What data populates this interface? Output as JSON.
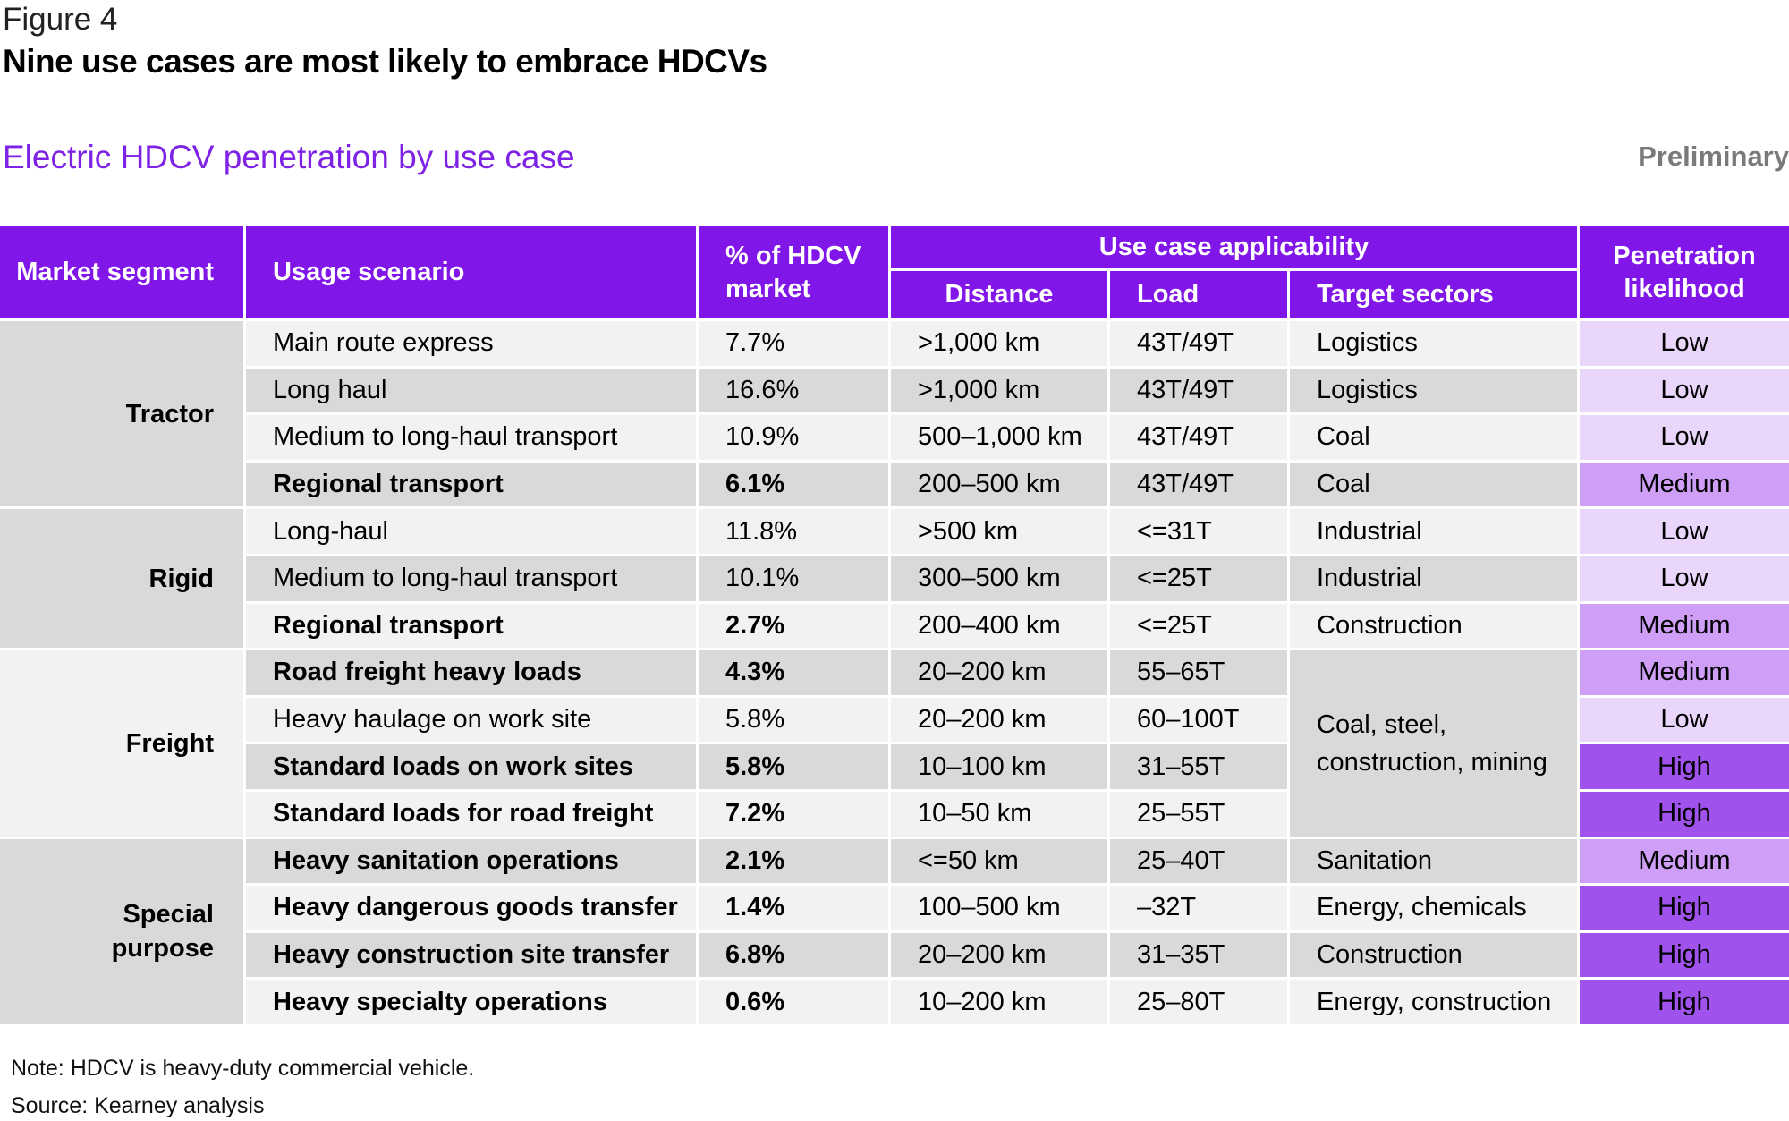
{
  "figure_label": "Figure 4",
  "headline": "Nine use cases are most likely to embrace HDCVs",
  "subtitle": "Electric HDCV penetration by use case",
  "status_tag": "Preliminary",
  "notes": [
    "Note: HDCV is heavy-duty commercial vehicle.",
    "Source: Kearney analysis"
  ],
  "colors": {
    "header_bg": "#8116e8",
    "subtitle": "#7e22e6",
    "row_light": "#f2f2f2",
    "row_dark": "#d9d9d9",
    "low": "#ead6fb",
    "medium": "#cf9ef6",
    "high": "#a052ed"
  },
  "chart_data": {
    "type": "table",
    "headers": {
      "market_segment": "Market segment",
      "usage_scenario": "Usage scenario",
      "share": "% of HDCV market",
      "applicability_group": "Use case applicability",
      "distance": "Distance",
      "load": "Load",
      "target_sectors": "Target sectors",
      "penetration": "Penetration likelihood"
    },
    "segments": [
      {
        "name": "Tractor",
        "rows": 4
      },
      {
        "name": "Rigid",
        "rows": 3
      },
      {
        "name": "Freight",
        "rows": 4
      },
      {
        "name": "Special purpose",
        "rows": 4
      }
    ],
    "rows": [
      {
        "scenario": "Main route express",
        "share": "7.7%",
        "share_value": 7.7,
        "distance": ">1,000 km",
        "load": "43T/49T",
        "sectors": "Logistics",
        "penetration": "Low",
        "bold": false
      },
      {
        "scenario": "Long haul",
        "share": "16.6%",
        "share_value": 16.6,
        "distance": ">1,000 km",
        "load": "43T/49T",
        "sectors": "Logistics",
        "penetration": "Low",
        "bold": false
      },
      {
        "scenario": "Medium to long-haul transport",
        "share": "10.9%",
        "share_value": 10.9,
        "distance": "500–1,000 km",
        "load": "43T/49T",
        "sectors": "Coal",
        "penetration": "Low",
        "bold": false
      },
      {
        "scenario": "Regional transport",
        "share": "6.1%",
        "share_value": 6.1,
        "distance": "200–500 km",
        "load": "43T/49T",
        "sectors": "Coal",
        "penetration": "Medium",
        "bold": true
      },
      {
        "scenario": "Long-haul",
        "share": "11.8%",
        "share_value": 11.8,
        "distance": ">500 km",
        "load": "<=31T",
        "sectors": "Industrial",
        "penetration": "Low",
        "bold": false
      },
      {
        "scenario": "Medium to long-haul transport",
        "share": "10.1%",
        "share_value": 10.1,
        "distance": "300–500 km",
        "load": "<=25T",
        "sectors": "Industrial",
        "penetration": "Low",
        "bold": false
      },
      {
        "scenario": "Regional transport",
        "share": "2.7%",
        "share_value": 2.7,
        "distance": "200–400 km",
        "load": "<=25T",
        "sectors": "Construction",
        "penetration": "Medium",
        "bold": true
      },
      {
        "scenario": "Road freight heavy loads",
        "share": "4.3%",
        "share_value": 4.3,
        "distance": "20–200 km",
        "load": "55–65T",
        "sectors": "Coal, steel, construction, mining",
        "penetration": "Medium",
        "bold": true
      },
      {
        "scenario": "Heavy haulage on work site",
        "share": "5.8%",
        "share_value": 5.8,
        "distance": "20–200 km",
        "load": "60–100T",
        "sectors": "Coal, steel, construction, mining",
        "penetration": "Low",
        "bold": false
      },
      {
        "scenario": "Standard loads on work sites",
        "share": "5.8%",
        "share_value": 5.8,
        "distance": "10–100 km",
        "load": "31–55T",
        "sectors": "Coal, steel, construction, mining",
        "penetration": "High",
        "bold": true
      },
      {
        "scenario": "Standard loads for road freight",
        "share": "7.2%",
        "share_value": 7.2,
        "distance": "10–50 km",
        "load": "25–55T",
        "sectors": "Coal, steel, construction, mining",
        "penetration": "High",
        "bold": true
      },
      {
        "scenario": "Heavy sanitation operations",
        "share": "2.1%",
        "share_value": 2.1,
        "distance": "<=50 km",
        "load": "25–40T",
        "sectors": "Sanitation",
        "penetration": "Medium",
        "bold": true
      },
      {
        "scenario": "Heavy dangerous goods transfer",
        "share": "1.4%",
        "share_value": 1.4,
        "distance": "100–500 km",
        "load": "–32T",
        "sectors": "Energy, chemicals",
        "penetration": "High",
        "bold": true
      },
      {
        "scenario": "Heavy construction site transfer",
        "share": "6.8%",
        "share_value": 6.8,
        "distance": "20–200 km",
        "load": "31–35T",
        "sectors": "Construction",
        "penetration": "High",
        "bold": true
      },
      {
        "scenario": "Heavy specialty operations",
        "share": "0.6%",
        "share_value": 0.6,
        "distance": "10–200 km",
        "load": "25–80T",
        "sectors": "Energy, construction",
        "penetration": "High",
        "bold": true
      }
    ],
    "merged_sector_rows": [
      7,
      10
    ]
  }
}
